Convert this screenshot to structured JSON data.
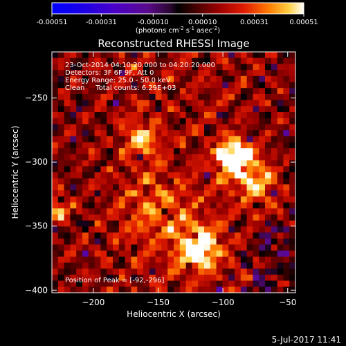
{
  "colorbar": {
    "tick_labels": [
      "-0.00051",
      "-0.00031",
      "-0.00010",
      "0.00010",
      "0.00031",
      "0.00051"
    ],
    "tick_values": [
      -0.00051,
      -0.00031,
      -0.0001,
      0.0001,
      0.00031,
      0.00051
    ],
    "range": [
      -0.00051,
      0.00051
    ],
    "units_prefix": "(photons cm",
    "units_sup1": "-2",
    "units_mid": " s",
    "units_sup2": "-1",
    "units_mid2": " asec",
    "units_sup3": "-2",
    "units_suffix": ")"
  },
  "chart_data": {
    "type": "heatmap",
    "title": "Reconstructed RHESSI Image",
    "xlabel": "Heliocentric X (arcsec)",
    "ylabel": "Heliocentric Y (arcsec)",
    "xlim": [
      -232,
      -44
    ],
    "ylim": [
      -402,
      -214
    ],
    "x_ticks": [
      -200,
      -150,
      -100,
      -50
    ],
    "y_ticks": [
      -250,
      -300,
      -350,
      -400
    ],
    "x_tick_labels": [
      "−200",
      "−150",
      "−100",
      "−50"
    ],
    "y_tick_labels": [
      "−250",
      "−300",
      "−350",
      "−400"
    ],
    "colormap": "rhessi-red-temperature",
    "annotations": [
      "23-Oct-2014 04:10:20.000 to 04:20:20.000",
      "Detectors: 3F 6F 9F, Att 0",
      "Energy Range: 25.0 - 50.0 keV",
      "Clean     Total counts: 6.29E+03"
    ],
    "peak_label": "Position of Peak = [-92,-296]",
    "peak": [
      -92,
      -296
    ]
  },
  "footer": {
    "date_stamp": "5-Jul-2017 11:41"
  },
  "colors": {
    "background": "#000000",
    "text": "#ffffff"
  }
}
